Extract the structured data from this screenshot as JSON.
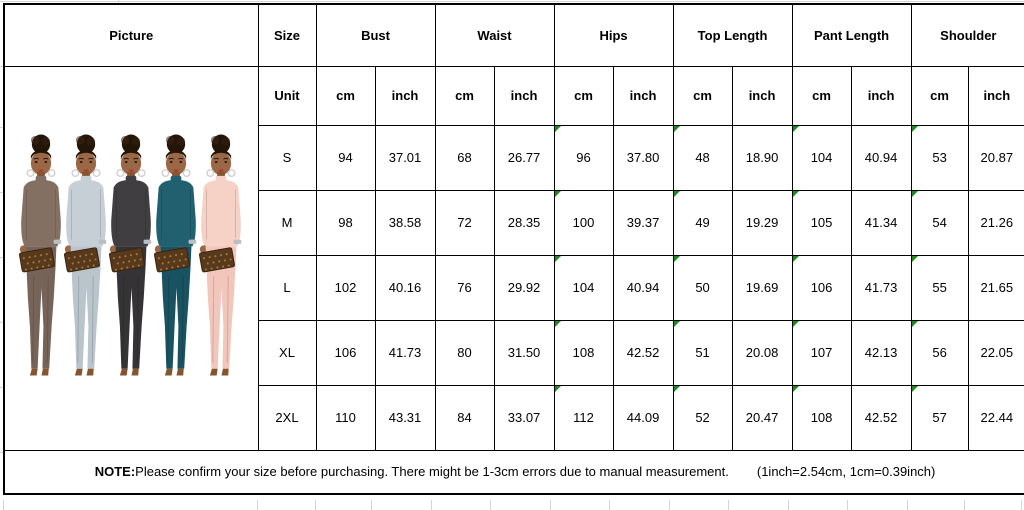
{
  "table": {
    "headers": [
      "Picture",
      "Size",
      "Bust",
      "Waist",
      "Hips",
      "Top Length",
      "Pant Length",
      "Shoulder"
    ],
    "unit_label": "Unit",
    "unit_cm": "cm",
    "unit_inch": "inch",
    "rows": [
      {
        "size": "S",
        "bust_cm": "94",
        "bust_inch": "37.01",
        "waist_cm": "68",
        "waist_inch": "26.77",
        "hips_cm": "96",
        "hips_inch": "37.80",
        "top_cm": "48",
        "top_inch": "18.90",
        "pant_cm": "104",
        "pant_inch": "40.94",
        "shoulder_cm": "53",
        "shoulder_inch": "20.87"
      },
      {
        "size": "M",
        "bust_cm": "98",
        "bust_inch": "38.58",
        "waist_cm": "72",
        "waist_inch": "28.35",
        "hips_cm": "100",
        "hips_inch": "39.37",
        "top_cm": "49",
        "top_inch": "19.29",
        "pant_cm": "105",
        "pant_inch": "41.34",
        "shoulder_cm": "54",
        "shoulder_inch": "21.26"
      },
      {
        "size": "L",
        "bust_cm": "102",
        "bust_inch": "40.16",
        "waist_cm": "76",
        "waist_inch": "29.92",
        "hips_cm": "104",
        "hips_inch": "40.94",
        "top_cm": "50",
        "top_inch": "19.69",
        "pant_cm": "106",
        "pant_inch": "41.73",
        "shoulder_cm": "55",
        "shoulder_inch": "21.65"
      },
      {
        "size": "XL",
        "bust_cm": "106",
        "bust_inch": "41.73",
        "waist_cm": "80",
        "waist_inch": "31.50",
        "hips_cm": "108",
        "hips_inch": "42.52",
        "top_cm": "51",
        "top_inch": "20.08",
        "pant_cm": "107",
        "pant_inch": "42.13",
        "shoulder_cm": "56",
        "shoulder_inch": "22.05"
      },
      {
        "size": "2XL",
        "bust_cm": "110",
        "bust_inch": "43.31",
        "waist_cm": "84",
        "waist_inch": "33.07",
        "hips_cm": "112",
        "hips_inch": "44.09",
        "top_cm": "52",
        "top_inch": "20.47",
        "pant_cm": "108",
        "pant_inch": "42.52",
        "shoulder_cm": "57",
        "shoulder_inch": "22.44"
      }
    ],
    "green_flag_columns": [
      "hips_cm",
      "top_cm",
      "pant_cm",
      "shoulder_cm"
    ]
  },
  "note": {
    "label": "NOTE:",
    "text": "Please confirm your size before purchasing. There might be 1-3cm errors due to manual measurement.",
    "conversion": "(1inch=2.54cm, 1cm=0.39inch)"
  },
  "picture": {
    "description": "Five models wearing the same two-piece long-sleeve top and jogger pant set in five colorways, each holding a brown patterned clutch",
    "variants": [
      {
        "name": "mocha-brown",
        "top": "#847062",
        "pant": "#776458"
      },
      {
        "name": "light-gray-blue",
        "top": "#c6cfd5",
        "pant": "#b9c4cb"
      },
      {
        "name": "charcoal-black",
        "top": "#403e40",
        "pant": "#353336"
      },
      {
        "name": "teal-blue",
        "top": "#20606f",
        "pant": "#195260"
      },
      {
        "name": "blush-pink",
        "top": "#f6d1c6",
        "pant": "#f2c6ba"
      }
    ],
    "shared_colors": {
      "skin": "#9b6847",
      "skin_shadow": "#85552f",
      "hair": "#241509",
      "clutch": "#59391c",
      "clutch_pattern": "#9c7a42",
      "earring": "#cfcfcf",
      "lips": "#a93b30"
    }
  },
  "colors": {
    "background": "#ffffff",
    "table_border": "#000000",
    "flag_green": "#1e8a1e",
    "margin_gridline": "#d4d4d4"
  }
}
